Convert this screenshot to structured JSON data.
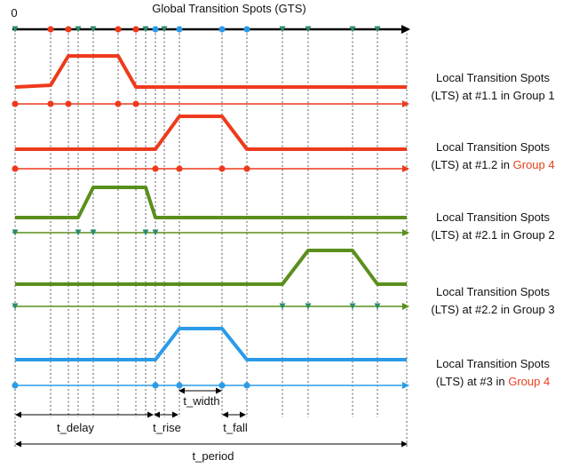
{
  "title": "Global Transition Spots (GTS)",
  "origin_label": "0",
  "colors": {
    "axis": "#000000",
    "red": "#ee3a1c",
    "green": "#5a8f1c",
    "blue": "#2b9be8",
    "teal_marker": "#2e8b70",
    "highlight": "#e8401e",
    "grid": "#333333"
  },
  "gts_markers": [
    {
      "t": 0,
      "kind": "teal"
    },
    {
      "t": 1,
      "kind": "red"
    },
    {
      "t": 2,
      "kind": "red"
    },
    {
      "t": 3,
      "kind": "teal"
    },
    {
      "t": 4,
      "kind": "teal"
    },
    {
      "t": 5,
      "kind": "red"
    },
    {
      "t": 6,
      "kind": "red"
    },
    {
      "t": 7,
      "kind": "teal"
    },
    {
      "t": 8,
      "kind": "blue"
    },
    {
      "t": 9,
      "kind": "teal"
    },
    {
      "t": 10,
      "kind": "blue"
    },
    {
      "t": 11,
      "kind": "blue"
    },
    {
      "t": 12,
      "kind": "blue"
    },
    {
      "t": 13,
      "kind": "teal"
    },
    {
      "t": 14,
      "kind": "teal"
    },
    {
      "t": 15,
      "kind": "teal"
    },
    {
      "t": 16,
      "kind": "teal"
    }
  ],
  "rows": [
    {
      "id": "red-1-1",
      "color": "red",
      "pulse": [
        0,
        1,
        2,
        5,
        6,
        17
      ],
      "lts": [
        0,
        1,
        2,
        5,
        6
      ],
      "label_line1": "Local Transition Spots",
      "label_line2_prefix": "(LTS) at #1.1 in ",
      "label_group": "Group 1",
      "group_highlight": false
    },
    {
      "id": "red-1-2",
      "color": "red",
      "pulse": [
        0,
        8,
        10,
        11,
        12,
        17
      ],
      "lts": [
        0,
        8,
        10,
        11,
        12
      ],
      "label_line1": "Local Transition Spots",
      "label_line2_prefix": "(LTS) at #1.2 in ",
      "label_group": "Group 4",
      "group_highlight": true
    },
    {
      "id": "green-2-1",
      "color": "green",
      "pulse": [
        0,
        3,
        4,
        7,
        8,
        17
      ],
      "lts": [
        0,
        3,
        4,
        7,
        8
      ],
      "label_line1": "Local Transition Spots",
      "label_line2_prefix": "(LTS) at #2.1 in ",
      "label_group": "Group 2",
      "group_highlight": false
    },
    {
      "id": "green-2-2",
      "color": "green",
      "pulse": [
        0,
        13,
        14,
        15,
        16,
        17
      ],
      "lts": [
        0,
        13,
        14,
        15,
        16
      ],
      "label_line1": "Local Transition Spots",
      "label_line2_prefix": "(LTS) at #2.2 in ",
      "label_group": "Group 3",
      "group_highlight": false
    },
    {
      "id": "blue-3",
      "color": "blue",
      "pulse": [
        0,
        8,
        10,
        11,
        12,
        17
      ],
      "lts": [
        0,
        8,
        10,
        11,
        12
      ],
      "label_line1": "Local Transition Spots",
      "label_line2_prefix": "(LTS) at  #3 in ",
      "label_group": "Group 4",
      "group_highlight": true
    }
  ],
  "timing": {
    "t_delay": "t_delay",
    "t_rise": "t_rise",
    "t_width": "t_width",
    "t_fall": "t_fall",
    "t_period": "t_period"
  }
}
